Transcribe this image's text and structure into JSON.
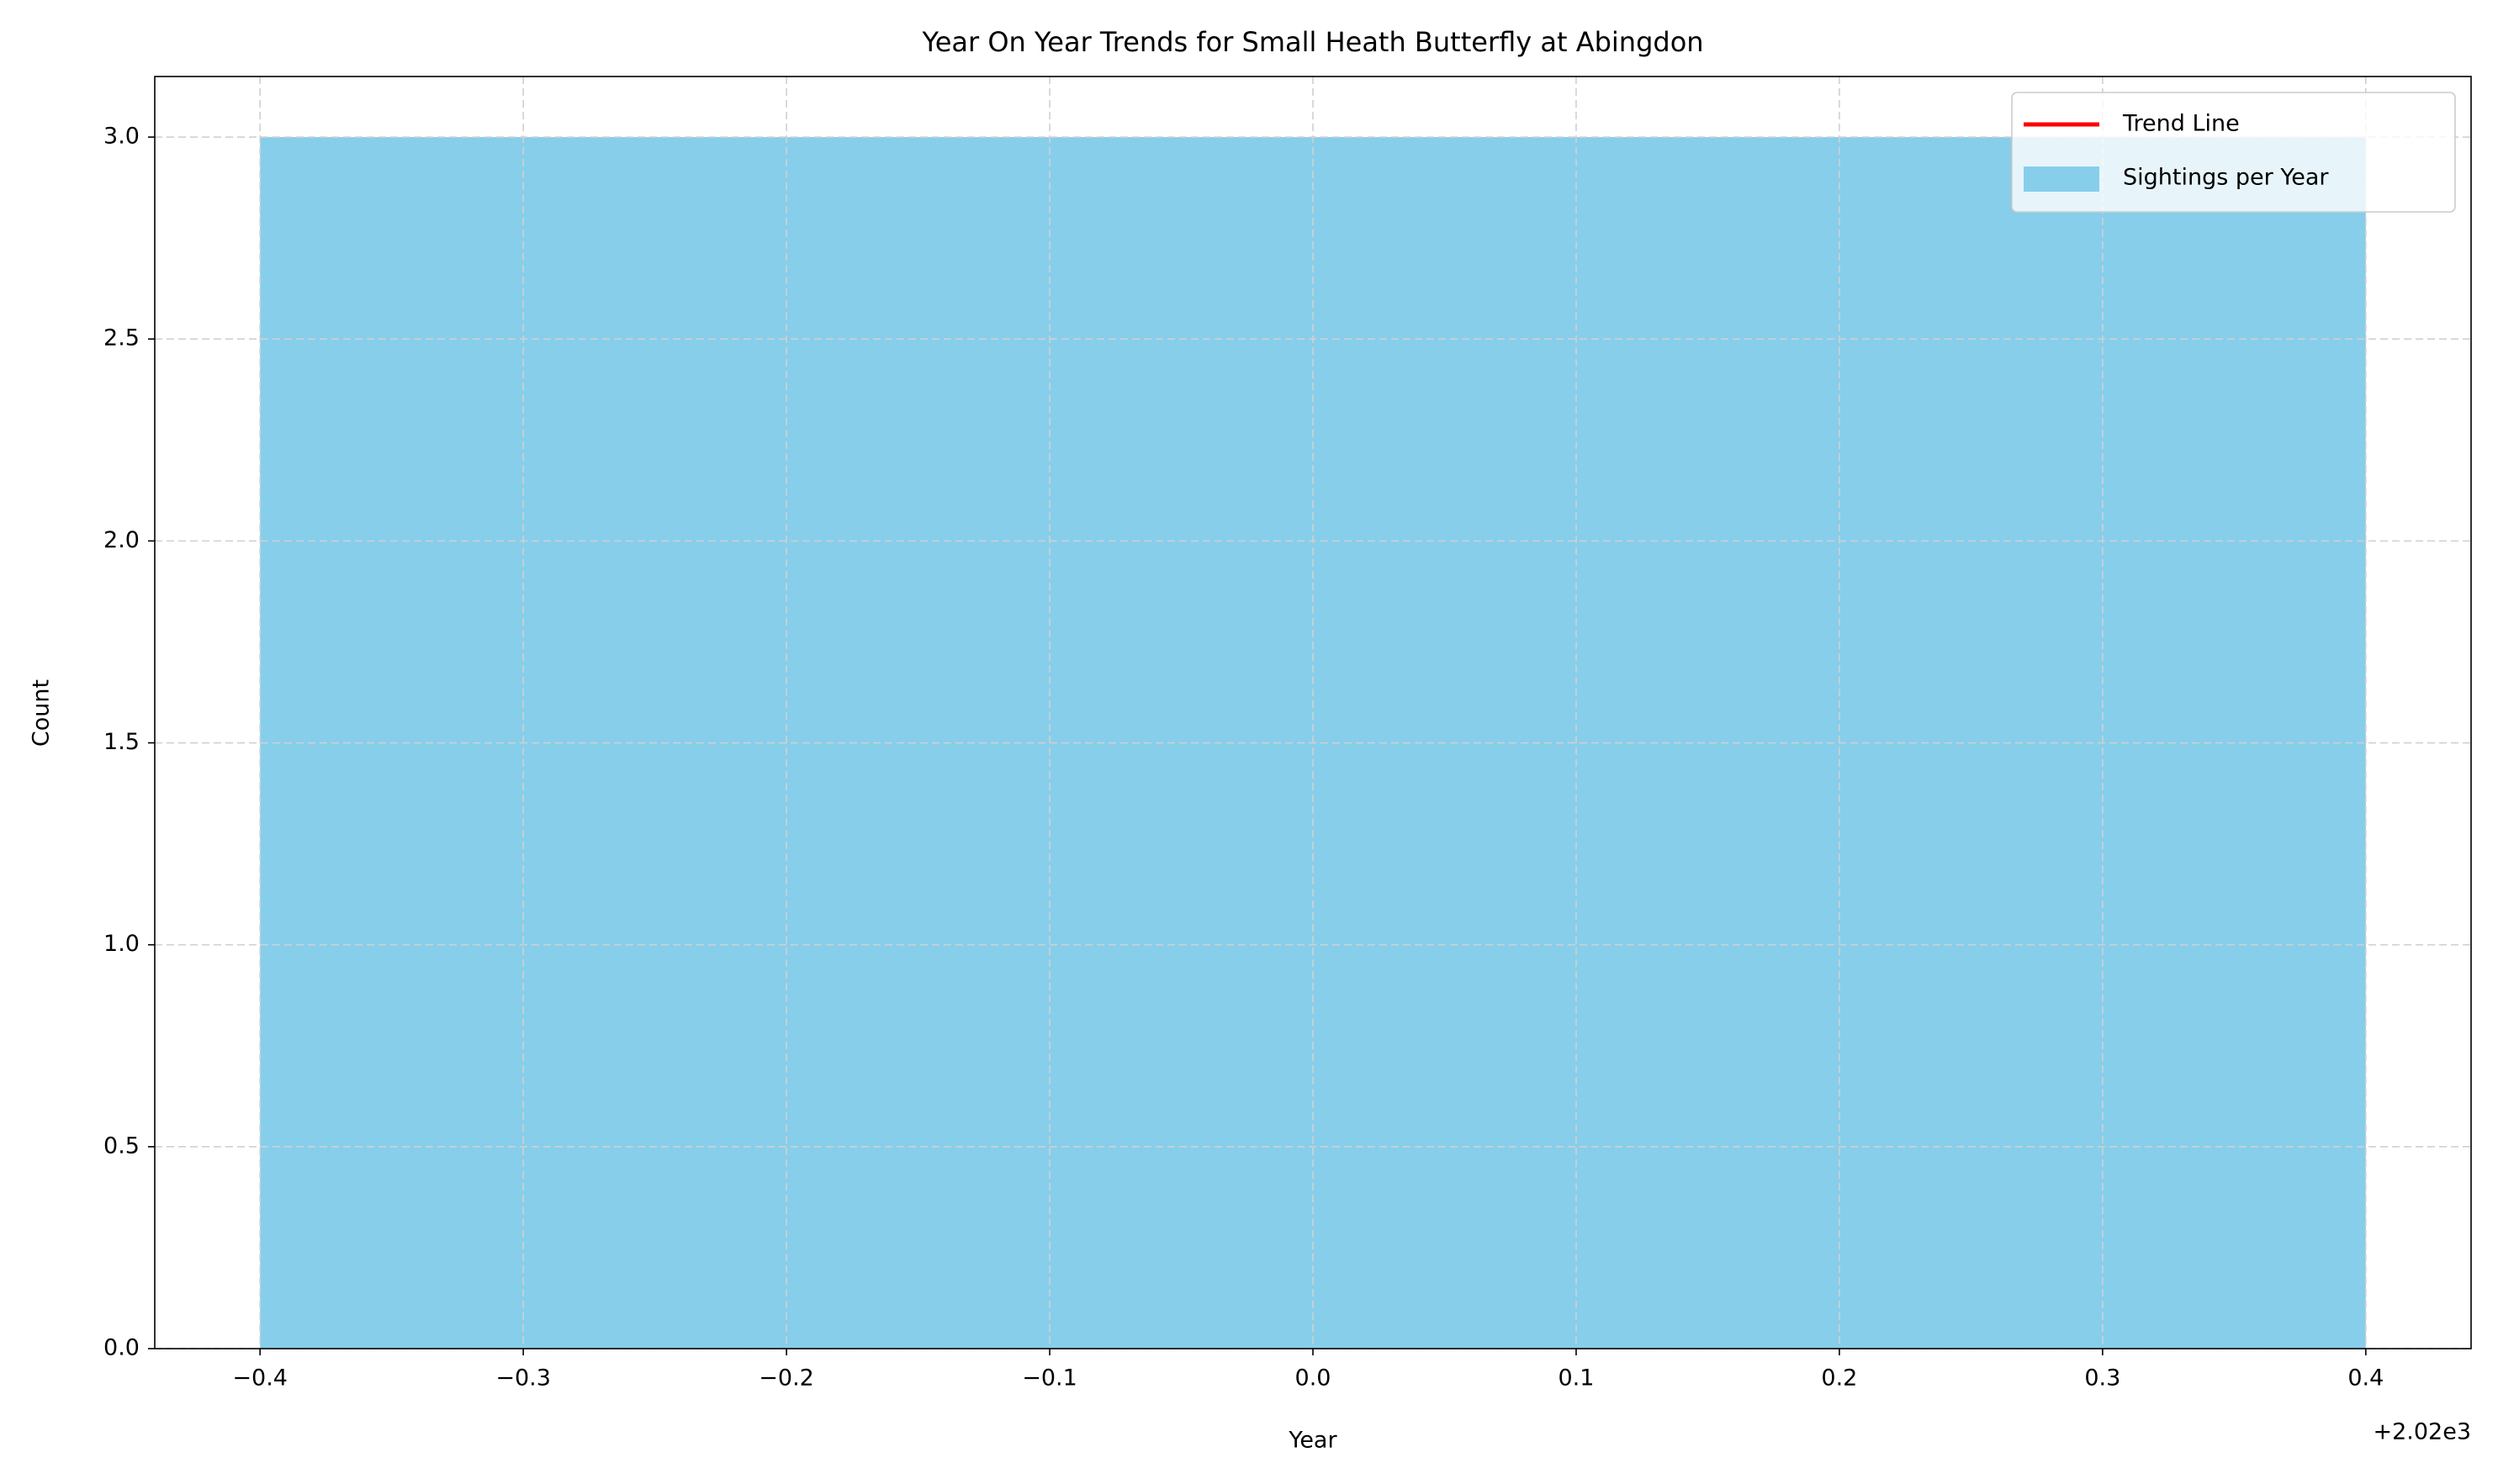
{
  "chart_data": {
    "type": "bar",
    "title": "Year On Year Trends for Small Heath Butterfly at Abingdon",
    "x_label": "Year",
    "y_label": "Count",
    "x": [
      2020
    ],
    "bar_width": 0.8,
    "series": [
      {
        "name": "Trend Line",
        "type": "line",
        "color": "#ff0000",
        "values": [
          3
        ]
      },
      {
        "name": "Sightings per Year",
        "type": "bar",
        "color": "#87ceeb",
        "values": [
          3
        ]
      }
    ],
    "xlim": [
      2019.56,
      2020.44
    ],
    "xticks": [
      {
        "value": 2019.6,
        "label": "−0.4"
      },
      {
        "value": 2019.7,
        "label": "−0.3"
      },
      {
        "value": 2019.8,
        "label": "−0.2"
      },
      {
        "value": 2019.9,
        "label": "−0.1"
      },
      {
        "value": 2020.0,
        "label": "0.0"
      },
      {
        "value": 2020.1,
        "label": "0.1"
      },
      {
        "value": 2020.2,
        "label": "0.2"
      },
      {
        "value": 2020.3,
        "label": "0.3"
      },
      {
        "value": 2020.4,
        "label": "0.4"
      }
    ],
    "x_offset_label": "+2.02e3",
    "ylim": [
      0,
      3.15
    ],
    "yticks": [
      {
        "value": 0,
        "label": "0.0"
      },
      0.5,
      {
        "value": 1,
        "label": "1.0"
      },
      1.5,
      {
        "value": 2,
        "label": "2.0"
      },
      2.5,
      {
        "value": 3,
        "label": "3.0"
      }
    ],
    "grid": true,
    "legend": "upper right"
  }
}
